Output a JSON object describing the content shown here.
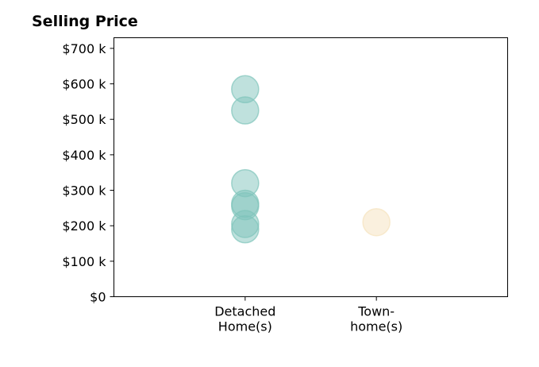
{
  "chart_data": {
    "type": "scatter",
    "title": "Selling Price",
    "xlabel": "",
    "ylabel": "",
    "categories": [
      "Detached\nHome(s)",
      "Town-\nhome(s)"
    ],
    "ylim": [
      0,
      730000
    ],
    "y_ticks": [
      0,
      100000,
      200000,
      300000,
      400000,
      500000,
      600000,
      700000
    ],
    "y_tick_labels": [
      "$0",
      "$100 k",
      "$200 k",
      "$300 k",
      "$400 k",
      "$500 k",
      "$600 k",
      "$700 k"
    ],
    "grid": false,
    "series": [
      {
        "category": "Detached\nHome(s)",
        "color": "#7fc4bb",
        "values": [
          585000,
          525000,
          320000,
          262000,
          255000,
          205000,
          190000
        ]
      },
      {
        "category": "Town-\nhome(s)",
        "color": "#f5e2bd",
        "values": [
          210000
        ]
      }
    ]
  }
}
